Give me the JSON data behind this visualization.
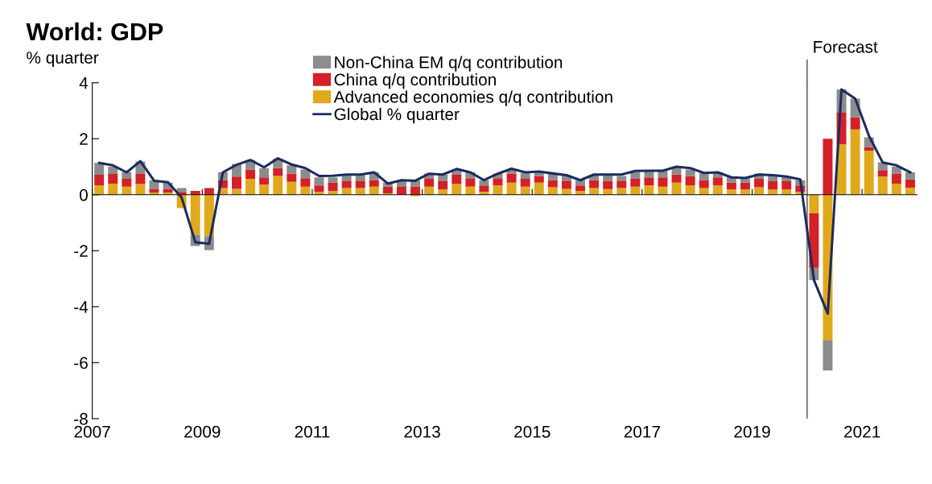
{
  "chart_data": {
    "type": "bar",
    "stacked": true,
    "title": "World: GDP",
    "ylabel": "% quarter",
    "x": [
      2007.125,
      2007.375,
      2007.625,
      2007.875,
      2008.125,
      2008.375,
      2008.625,
      2008.875,
      2009.125,
      2009.375,
      2009.625,
      2009.875,
      2010.125,
      2010.375,
      2010.625,
      2010.875,
      2011.125,
      2011.375,
      2011.625,
      2011.875,
      2012.125,
      2012.375,
      2012.625,
      2012.875,
      2013.125,
      2013.375,
      2013.625,
      2013.875,
      2014.125,
      2014.375,
      2014.625,
      2014.875,
      2015.125,
      2015.375,
      2015.625,
      2015.875,
      2016.125,
      2016.375,
      2016.625,
      2016.875,
      2017.125,
      2017.375,
      2017.625,
      2017.875,
      2018.125,
      2018.375,
      2018.625,
      2018.875,
      2019.125,
      2019.375,
      2019.625,
      2019.875,
      2020.125,
      2020.375,
      2020.625,
      2020.875,
      2021.125,
      2021.375,
      2021.625,
      2021.875
    ],
    "series": [
      {
        "name": "Advanced economies q/q contribution",
        "color": "#e0a81c",
        "values": [
          0.33,
          0.4,
          0.29,
          0.38,
          0.08,
          0.08,
          -0.48,
          -1.43,
          -1.48,
          0.24,
          0.21,
          0.57,
          0.36,
          0.67,
          0.46,
          0.29,
          0.1,
          0.14,
          0.24,
          0.24,
          0.29,
          0.05,
          null,
          -0.05,
          0.29,
          0.19,
          0.38,
          0.29,
          0.11,
          0.33,
          0.43,
          0.29,
          0.43,
          0.27,
          0.21,
          0.14,
          0.24,
          0.2,
          0.24,
          0.29,
          0.33,
          0.29,
          0.43,
          0.33,
          0.24,
          0.33,
          0.19,
          0.19,
          0.27,
          0.19,
          0.19,
          0.1,
          -0.67,
          -5.19,
          1.81,
          2.33,
          1.57,
          0.65,
          0.4,
          0.25
        ]
      },
      {
        "name": "China q/q contribution",
        "color": "#d42027",
        "values": [
          0.38,
          0.34,
          0.28,
          0.36,
          0.13,
          0.13,
          0.1,
          0.14,
          0.24,
          0.28,
          0.44,
          0.33,
          0.26,
          0.28,
          0.3,
          0.3,
          0.23,
          0.29,
          0.24,
          0.24,
          0.23,
          0.24,
          0.28,
          0.29,
          0.28,
          0.29,
          0.33,
          0.28,
          0.22,
          0.26,
          0.33,
          0.28,
          0.24,
          0.25,
          0.27,
          0.19,
          0.28,
          0.3,
          0.24,
          0.28,
          0.29,
          0.33,
          0.29,
          0.33,
          0.29,
          0.29,
          0.24,
          0.24,
          0.3,
          0.29,
          0.29,
          0.23,
          -1.95,
          2.0,
          1.14,
          0.43,
          0.13,
          0.23,
          0.36,
          0.3
        ]
      },
      {
        "name": "Non-China EM q/q contribution",
        "color": "#8c8c8c",
        "values": [
          0.43,
          0.26,
          0.24,
          0.45,
          0.31,
          0.22,
          0.14,
          -0.4,
          -0.5,
          0.29,
          0.45,
          0.34,
          0.33,
          0.34,
          0.29,
          0.31,
          0.29,
          0.19,
          0.23,
          0.23,
          0.29,
          0.14,
          0.22,
          0.23,
          0.19,
          0.23,
          0.19,
          0.24,
          0.19,
          0.17,
          0.14,
          0.21,
          0.17,
          0.24,
          0.21,
          0.19,
          0.19,
          0.2,
          0.19,
          0.24,
          0.24,
          0.24,
          0.29,
          0.24,
          0.24,
          0.19,
          0.19,
          0.16,
          0.19,
          0.24,
          0.17,
          0.19,
          -0.43,
          -1.09,
          0.81,
          0.67,
          0.35,
          0.28,
          0.24,
          0.25
        ]
      },
      {
        "name": "Global % quarter",
        "type": "line",
        "color": "#1c2b5e",
        "values": [
          1.14,
          1.05,
          0.8,
          1.2,
          0.5,
          0.45,
          -0.1,
          -1.7,
          -1.75,
          0.8,
          1.07,
          1.24,
          0.98,
          1.3,
          1.08,
          0.95,
          0.67,
          0.68,
          0.72,
          0.72,
          0.8,
          0.4,
          0.52,
          0.5,
          0.75,
          0.72,
          0.92,
          0.8,
          0.52,
          0.75,
          0.93,
          0.8,
          0.83,
          0.76,
          0.7,
          0.52,
          0.72,
          0.72,
          0.72,
          0.85,
          0.86,
          0.86,
          1.0,
          0.95,
          0.78,
          0.8,
          0.62,
          0.6,
          0.72,
          0.7,
          0.65,
          0.55,
          -3.05,
          -4.25,
          3.76,
          3.43,
          2.1,
          1.15,
          1.05,
          0.8
        ]
      }
    ],
    "xlim": [
      2007,
      2022
    ],
    "xticks": [
      2007,
      2009,
      2011,
      2013,
      2015,
      2017,
      2019,
      2021
    ],
    "ylim": [
      -8,
      4
    ],
    "yticks": [
      -8,
      -6,
      -4,
      -2,
      0,
      2,
      4
    ],
    "ref_lines": [
      {
        "axis": "x",
        "value": 2020,
        "label": "Forecast",
        "color": "#808080"
      }
    ],
    "legend": "top"
  }
}
